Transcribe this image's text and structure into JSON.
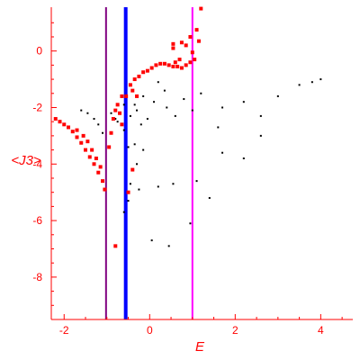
{
  "chart_data": {
    "type": "scatter",
    "title": "",
    "xlabel": "E",
    "ylabel": "<J3>",
    "xlim": [
      -2.3,
      4.75
    ],
    "ylim": [
      -9.5,
      1.55
    ],
    "x_ticks": [
      -2,
      0,
      2,
      4
    ],
    "y_ticks": [
      0,
      -2,
      -4,
      -6,
      -8
    ],
    "x_tick_labels": [
      "-2",
      "0",
      "2",
      "4"
    ],
    "y_tick_labels": [
      "0",
      "-2",
      "-4",
      "-6",
      "-8"
    ],
    "grid": false,
    "legend": "none",
    "colors": {
      "axis": "#ff0000",
      "black_series": "#000000",
      "red_series": "#ff0000",
      "purple_line": "#800080",
      "blue_line": "#0000ff",
      "magenta_line": "#ff00ff"
    },
    "vertical_lines": [
      {
        "x": -1.02,
        "color": "#800080"
      },
      {
        "x": -0.56,
        "color": "#0000ff"
      },
      {
        "x": 1.0,
        "color": "#ff00ff"
      }
    ],
    "series": [
      {
        "color": "#000000",
        "marker": "small-dot",
        "points": [
          [
            -1.6,
            -2.1
          ],
          [
            -1.45,
            -2.2
          ],
          [
            -1.3,
            -2.4
          ],
          [
            -1.2,
            -2.6
          ],
          [
            -1.1,
            -2.9
          ],
          [
            -0.9,
            -2.2
          ],
          [
            -0.75,
            -2.5
          ],
          [
            -0.6,
            -2.8
          ],
          [
            -0.45,
            -2.3
          ],
          [
            -0.3,
            -2.1
          ],
          [
            -0.2,
            -2.6
          ],
          [
            -0.05,
            -2.4
          ],
          [
            -0.5,
            -3.4
          ],
          [
            -0.35,
            -3.3
          ],
          [
            -0.15,
            -3.5
          ],
          [
            -0.3,
            -4.0
          ],
          [
            -0.45,
            -4.7
          ],
          [
            -0.25,
            -4.9
          ],
          [
            -0.5,
            -5.3
          ],
          [
            -0.6,
            -5.7
          ],
          [
            0.2,
            -4.8
          ],
          [
            0.55,
            -4.7
          ],
          [
            1.1,
            -4.6
          ],
          [
            1.4,
            -5.2
          ],
          [
            0.95,
            -6.1
          ],
          [
            0.05,
            -6.7
          ],
          [
            0.45,
            -6.9
          ],
          [
            1.7,
            -3.6
          ],
          [
            2.2,
            -3.8
          ],
          [
            2.6,
            -3.0
          ],
          [
            0.4,
            -2.0
          ],
          [
            0.6,
            -2.3
          ],
          [
            0.8,
            -1.7
          ],
          [
            1.0,
            -2.1
          ],
          [
            1.2,
            -1.5
          ],
          [
            1.7,
            -2.0
          ],
          [
            2.2,
            -1.8
          ],
          [
            2.6,
            -2.3
          ],
          [
            3.0,
            -1.6
          ],
          [
            3.5,
            -1.2
          ],
          [
            3.8,
            -1.1
          ],
          [
            4.0,
            -1.0
          ],
          [
            1.6,
            -2.7
          ],
          [
            0.2,
            -1.1
          ],
          [
            0.35,
            -1.4
          ],
          [
            0.1,
            -1.8
          ],
          [
            -0.15,
            -1.6
          ],
          [
            -0.35,
            -1.9
          ],
          [
            -0.6,
            -1.9
          ],
          [
            -0.8,
            -2.4
          ]
        ]
      },
      {
        "color": "#ff0000",
        "marker": "square",
        "points": [
          [
            -2.2,
            -2.4
          ],
          [
            -2.1,
            -2.5
          ],
          [
            -2.0,
            -2.6
          ],
          [
            -1.9,
            -2.7
          ],
          [
            -1.8,
            -2.85
          ],
          [
            -1.7,
            -3.05
          ],
          [
            -1.6,
            -3.25
          ],
          [
            -1.5,
            -3.5
          ],
          [
            -1.4,
            -3.75
          ],
          [
            -1.3,
            -4.0
          ],
          [
            -1.2,
            -4.3
          ],
          [
            -1.1,
            -4.6
          ],
          [
            -1.05,
            -4.9
          ],
          [
            -1.7,
            -2.8
          ],
          [
            -1.55,
            -3.0
          ],
          [
            -1.45,
            -3.2
          ],
          [
            -1.35,
            -3.5
          ],
          [
            -1.25,
            -3.8
          ],
          [
            -1.15,
            -4.1
          ],
          [
            -0.95,
            -3.4
          ],
          [
            -0.9,
            -2.9
          ],
          [
            -0.85,
            -2.4
          ],
          [
            -0.8,
            -2.1
          ],
          [
            -0.75,
            -1.9
          ],
          [
            -0.65,
            -1.6
          ],
          [
            -0.55,
            -1.6
          ],
          [
            -0.7,
            -2.2
          ],
          [
            -0.65,
            -2.6
          ],
          [
            -0.45,
            -1.2
          ],
          [
            -0.35,
            -1.0
          ],
          [
            -0.25,
            -0.9
          ],
          [
            -0.15,
            -0.75
          ],
          [
            -0.05,
            -0.7
          ],
          [
            0.05,
            -0.6
          ],
          [
            0.15,
            -0.5
          ],
          [
            0.25,
            -0.45
          ],
          [
            0.35,
            -0.45
          ],
          [
            0.45,
            -0.5
          ],
          [
            0.55,
            -0.55
          ],
          [
            0.65,
            -0.55
          ],
          [
            0.75,
            -0.6
          ],
          [
            0.85,
            -0.5
          ],
          [
            0.95,
            -0.4
          ],
          [
            1.05,
            -0.3
          ],
          [
            -0.4,
            -1.4
          ],
          [
            -0.3,
            -1.6
          ],
          [
            0.6,
            -0.4
          ],
          [
            0.7,
            -0.3
          ],
          [
            0.55,
            0.1
          ],
          [
            0.75,
            0.3
          ],
          [
            0.95,
            0.5
          ],
          [
            1.1,
            0.75
          ],
          [
            1.15,
            0.35
          ],
          [
            1.0,
            -0.05
          ],
          [
            0.85,
            0.2
          ],
          [
            0.55,
            0.25
          ],
          [
            -0.8,
            -6.9
          ],
          [
            -0.5,
            -5.0
          ],
          [
            -0.4,
            -4.2
          ],
          [
            1.2,
            1.5
          ]
        ]
      }
    ]
  }
}
